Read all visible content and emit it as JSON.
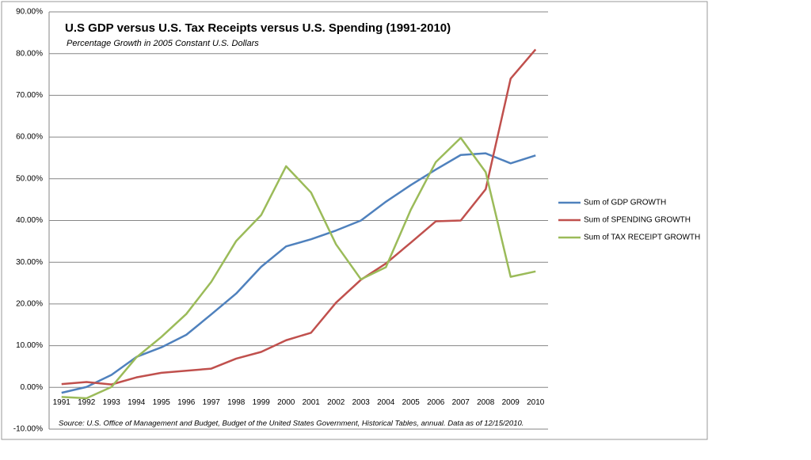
{
  "chart_data": {
    "type": "line",
    "title": "U.S GDP versus U.S. Tax Receipts versus U.S. Spending (1991-2010)",
    "subtitle": "Percentage Growth in 2005 Constant U.S. Dollars",
    "source": "Source: U.S. Office of Management and Budget, Budget of the United States Government, Historical Tables, annual. Data as of 12/15/2010.",
    "categories": [
      "1991",
      "1992",
      "1993",
      "1994",
      "1995",
      "1996",
      "1997",
      "1998",
      "1999",
      "2000",
      "2001",
      "2002",
      "2003",
      "2004",
      "2005",
      "2006",
      "2007",
      "2008",
      "2009",
      "2010"
    ],
    "series": [
      {
        "name": "Sum of GDP GROWTH",
        "color": "#4f81bd",
        "values": [
          -1.3,
          0.1,
          3.0,
          7.3,
          9.6,
          12.6,
          17.5,
          22.5,
          28.9,
          33.8,
          35.5,
          37.6,
          40.0,
          44.5,
          48.5,
          52.2,
          55.7,
          56.1,
          53.7,
          55.6
        ]
      },
      {
        "name": "Sum of SPENDING  GROWTH",
        "color": "#c0504d",
        "values": [
          0.8,
          1.3,
          0.7,
          2.4,
          3.5,
          4.0,
          4.5,
          6.9,
          8.5,
          11.3,
          13.1,
          20.3,
          25.8,
          29.7,
          34.7,
          39.8,
          40.0,
          47.5,
          74.0,
          81.0
        ]
      },
      {
        "name": "Sum of TAX RECEIPT  GROWTH",
        "color": "#9bbb59",
        "values": [
          -2.3,
          -2.6,
          0.1,
          7.2,
          12.1,
          17.6,
          25.3,
          35.1,
          41.3,
          53.0,
          46.7,
          34.3,
          25.9,
          28.8,
          42.6,
          54.0,
          59.8,
          51.6,
          26.5,
          27.8
        ]
      }
    ],
    "ylim": [
      -10,
      90
    ],
    "yticks": [
      {
        "value": -10,
        "label": "-10.00%"
      },
      {
        "value": 0,
        "label": "0.00%"
      },
      {
        "value": 10,
        "label": "10.00%"
      },
      {
        "value": 20,
        "label": "20.00%"
      },
      {
        "value": 30,
        "label": "30.00%"
      },
      {
        "value": 40,
        "label": "40.00%"
      },
      {
        "value": 50,
        "label": "50.00%"
      },
      {
        "value": 60,
        "label": "60.00%"
      },
      {
        "value": 70,
        "label": "70.00%"
      },
      {
        "value": 80,
        "label": "80.00%"
      },
      {
        "value": 90,
        "label": "90.00%"
      }
    ],
    "grid": true,
    "legend": "right"
  }
}
